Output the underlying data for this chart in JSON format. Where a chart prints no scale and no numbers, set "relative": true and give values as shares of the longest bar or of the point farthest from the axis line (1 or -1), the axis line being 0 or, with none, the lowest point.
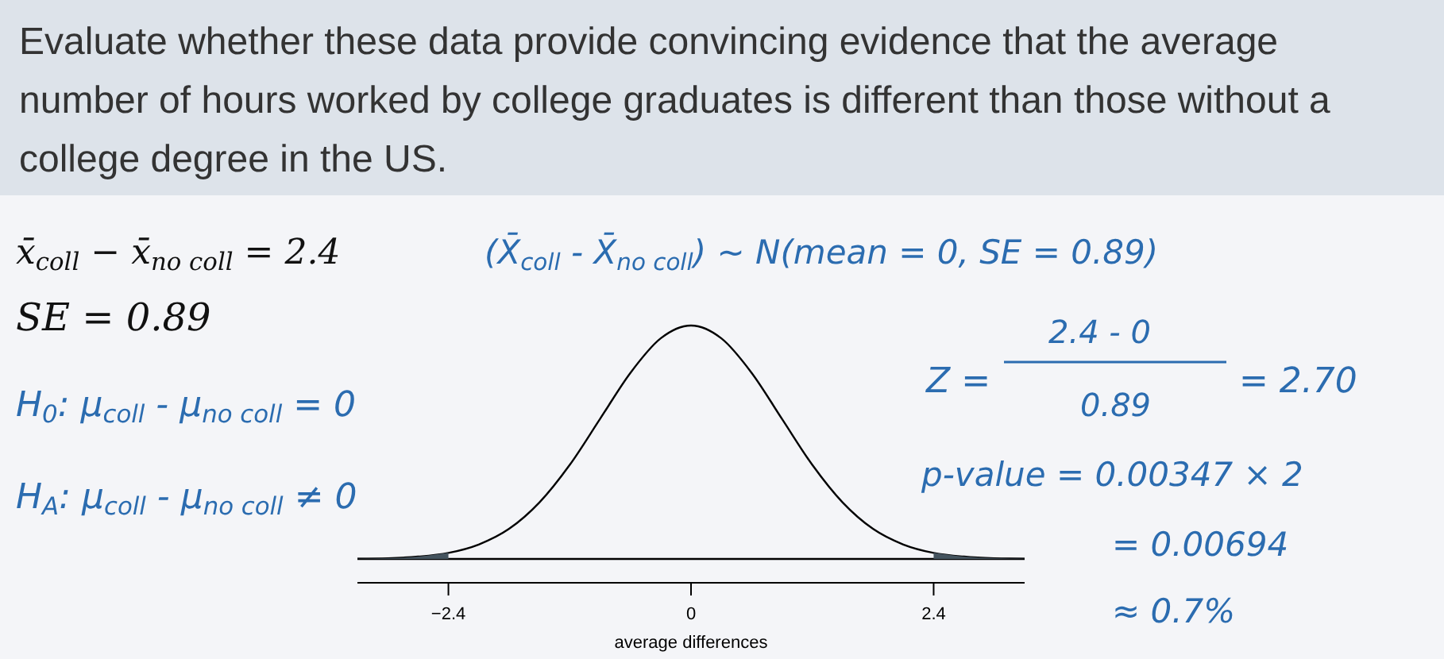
{
  "chart_data": {
    "type": "line",
    "relative": true,
    "title": "Evaluate whether these data provide convincing evidence that the average number of hours worked by college graduates is different than those without a college degree in the US.",
    "xlabel": "average differences",
    "xlim": [
      -3.3,
      3.3
    ],
    "xticks": [
      {
        "value": -2.4,
        "label": "−2.4"
      },
      0,
      2.4
    ],
    "series": [
      {
        "color": "#000000",
        "x": [
          -3.3,
          -3.0,
          -2.7,
          -2.4,
          -2.1,
          -1.8,
          -1.5,
          -1.2,
          -0.9,
          -0.6,
          -0.3,
          0,
          0.3,
          0.6,
          0.9,
          1.2,
          1.5,
          1.8,
          2.1,
          2.4,
          2.7,
          3.0,
          3.3
        ],
        "values": [
          0.001,
          0.003,
          0.01,
          0.026,
          0.062,
          0.129,
          0.242,
          0.403,
          0.6,
          0.797,
          0.945,
          1,
          0.945,
          0.797,
          0.6,
          0.403,
          0.242,
          0.129,
          0.062,
          0.026,
          0.01,
          0.003,
          0.001
        ]
      },
      {
        "type": "area",
        "color": "#44535e",
        "x": [
          -3.3,
          -3.0,
          -2.7,
          -2.4
        ],
        "values": [
          0.001,
          0.003,
          0.01,
          0.026
        ]
      },
      {
        "type": "area",
        "color": "#44535e",
        "x": [
          2.4,
          2.7,
          3.0,
          3.3
        ],
        "values": [
          0.026,
          0.01,
          0.003,
          0.001
        ]
      }
    ],
    "annotations": [
      "x̄$_{coll}$ − x̄$_{no coll}$ = 2.4",
      "(X̄$_{coll}$ - X̄$_{no coll}$) ~ N(mean = 0, SE = 0.89)",
      "SE = 0.89",
      "H$_{0}$: μ$_{coll}$ - μ$_{no coll}$ = 0",
      "H$_{A}$: μ$_{coll}$ - μ$_{no coll}$ ≠ 0",
      "Z =",
      "2.4 - 0",
      "0.89",
      "= 2.70",
      "p-value = 0.00347 × 2",
      "= 0.00694",
      "≈ 0.7%"
    ]
  }
}
